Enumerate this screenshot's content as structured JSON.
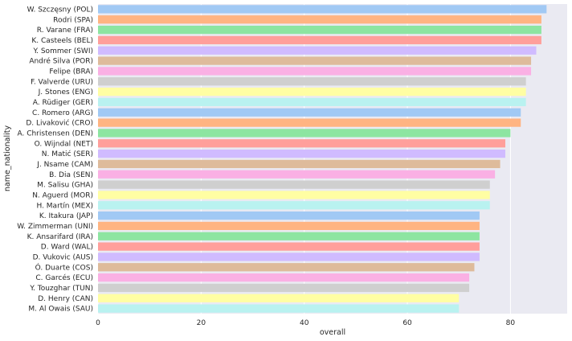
{
  "chart_data": {
    "type": "bar",
    "orientation": "horizontal",
    "title": "",
    "xlabel": "overall",
    "ylabel": "name_nationality",
    "xlim": [
      0,
      91
    ],
    "xticks": [
      0,
      20,
      40,
      60,
      80
    ],
    "grid": true,
    "legend": "none",
    "categories": [
      "W. Szczęsny (POL)",
      "Rodri (SPA)",
      "R. Varane (FRA)",
      "K. Casteels (BEL)",
      "Y. Sommer (SWI)",
      "André Silva (POR)",
      "Felipe (BRA)",
      "F. Valverde (URU)",
      "J. Stones (ENG)",
      "A. Rüdiger (GER)",
      "C. Romero (ARG)",
      "D. Livaković (CRO)",
      "A. Christensen (DEN)",
      "O. Wijndal (NET)",
      "N. Matić (SER)",
      "J. Nsame (CAM)",
      "B. Dia (SEN)",
      "M. Salisu (GHA)",
      "N. Aguerd (MOR)",
      "H. Martín (MEX)",
      "K. Itakura (JAP)",
      "W. Zimmerman (UNI)",
      "K. Ansarifard (IRA)",
      "D. Ward (WAL)",
      "D. Vukovic (AUS)",
      "Ó. Duarte (COS)",
      "C. Garcés (ECU)",
      "Y. Touzghar (TUN)",
      "D. Henry (CAN)",
      "M. Al Owais (SAU)"
    ],
    "values": [
      87,
      86,
      86,
      86,
      85,
      84,
      84,
      83,
      83,
      83,
      82,
      82,
      80,
      79,
      79,
      78,
      77,
      76,
      76,
      76,
      74,
      74,
      74,
      74,
      74,
      73,
      72,
      72,
      70,
      70
    ],
    "palette": [
      "#a1c9f4",
      "#ffb482",
      "#8de5a1",
      "#ff9f9b",
      "#d0bbff",
      "#debb9b",
      "#fab0e4",
      "#cfcfcf",
      "#fffea3",
      "#b9f2f0"
    ],
    "background_color": "#eaeaf2",
    "grid_color": "#ffffff"
  }
}
